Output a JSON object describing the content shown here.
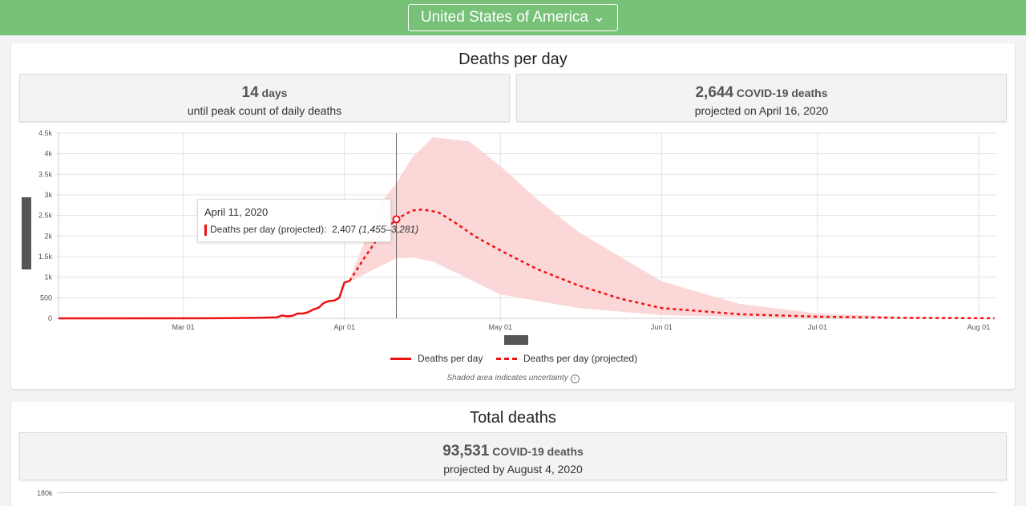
{
  "header": {
    "country": "United States of America",
    "chevron": "chevron-down-icon"
  },
  "daily": {
    "title": "Deaths per day",
    "stat1": {
      "value": "14",
      "unit": "days",
      "caption": "until peak count of daily deaths"
    },
    "stat2": {
      "value": "2,644",
      "unit": "COVID-19 deaths",
      "caption": "projected on April 16, 2020"
    },
    "tooltip": {
      "date": "April 11, 2020",
      "label": "Deaths per day (projected):",
      "value": "2,407",
      "range": "(1,455–3,281)"
    },
    "note": "Shaded area indicates uncertainty"
  },
  "total": {
    "title": "Total deaths",
    "stat": {
      "value": "93,531",
      "unit": "COVID-19 deaths",
      "caption": "projected by August 4, 2020"
    },
    "ytick_top": "180k"
  },
  "chart_data": {
    "type": "line",
    "title": "Deaths per day",
    "x_unit": "days since Mar 01 2020",
    "xlim": [
      -24,
      156.4
    ],
    "ylim": [
      0,
      4500
    ],
    "yticks": [
      0,
      500,
      1000,
      1500,
      2000,
      2500,
      3000,
      3500,
      4000,
      4500
    ],
    "ytick_labels": [
      "0",
      "500",
      "1k",
      "1.5k",
      "2k",
      "2.5k",
      "3k",
      "3.5k",
      "4k",
      "4.5k"
    ],
    "xticks": [
      0,
      31,
      61,
      92,
      122,
      153
    ],
    "xtick_labels": [
      "Mar 01",
      "Apr 01",
      "May 01",
      "Jun 01",
      "Jul 01",
      "Aug 01"
    ],
    "hover_x": 41,
    "colors": {
      "line": "#ee1111",
      "band": "#fbd3d3"
    },
    "series": [
      {
        "name": "Deaths per day",
        "points": [
          [
            -24,
            0
          ],
          [
            5,
            2
          ],
          [
            10,
            8
          ],
          [
            15,
            15
          ],
          [
            18,
            25
          ],
          [
            19,
            70
          ],
          [
            20,
            50
          ],
          [
            21,
            60
          ],
          [
            22,
            120
          ],
          [
            23,
            115
          ],
          [
            24,
            150
          ],
          [
            25,
            215
          ],
          [
            26,
            255
          ],
          [
            27,
            370
          ],
          [
            28,
            420
          ],
          [
            29,
            430
          ],
          [
            30,
            500
          ],
          [
            31,
            870
          ],
          [
            32,
            910
          ]
        ]
      },
      {
        "name": "Deaths per day (projected)",
        "points": [
          [
            32,
            910
          ],
          [
            35,
            1500
          ],
          [
            38,
            2050
          ],
          [
            41,
            2407
          ],
          [
            44,
            2620
          ],
          [
            46,
            2644
          ],
          [
            49,
            2580
          ],
          [
            52,
            2350
          ],
          [
            56,
            2000
          ],
          [
            61,
            1650
          ],
          [
            68,
            1200
          ],
          [
            76,
            800
          ],
          [
            84,
            480
          ],
          [
            92,
            250
          ],
          [
            107,
            100
          ],
          [
            122,
            40
          ],
          [
            138,
            12
          ],
          [
            153,
            4
          ],
          [
            156,
            3
          ]
        ],
        "lower": [
          [
            32,
            880
          ],
          [
            36,
            1150
          ],
          [
            41,
            1455
          ],
          [
            44,
            1480
          ],
          [
            48,
            1380
          ],
          [
            55,
            950
          ],
          [
            61,
            580
          ],
          [
            76,
            250
          ],
          [
            92,
            80
          ],
          [
            107,
            30
          ],
          [
            122,
            10
          ],
          [
            153,
            0
          ],
          [
            156,
            0
          ]
        ],
        "upper": [
          [
            32,
            950
          ],
          [
            35,
            1900
          ],
          [
            38,
            2800
          ],
          [
            41,
            3281
          ],
          [
            44,
            3900
          ],
          [
            48,
            4400
          ],
          [
            55,
            4300
          ],
          [
            61,
            3700
          ],
          [
            68,
            2900
          ],
          [
            76,
            2100
          ],
          [
            92,
            900
          ],
          [
            107,
            350
          ],
          [
            122,
            120
          ],
          [
            138,
            40
          ],
          [
            156,
            15
          ]
        ]
      }
    ]
  }
}
